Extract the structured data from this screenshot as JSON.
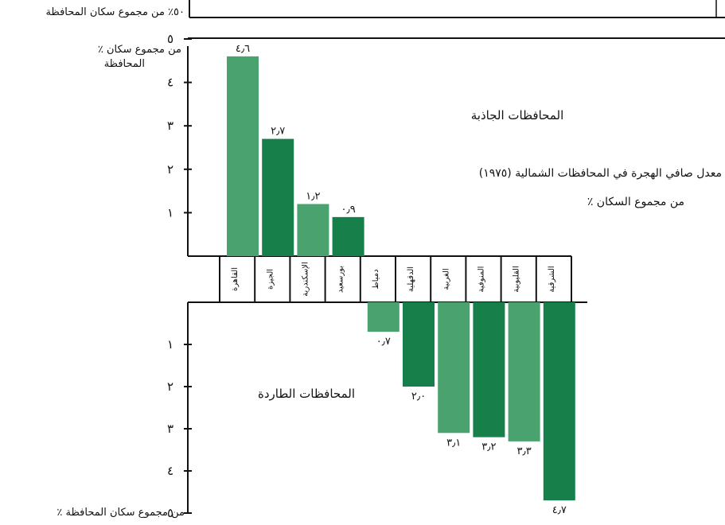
{
  "top_fragment_label": "٥٠٪ من مجموع سكان المحافظة",
  "chart_data": {
    "type": "bar",
    "title": "معدل صافي الهجرة في المحافظات الشمالية (١٩٧٥)",
    "subtitle": "٪ من مجموع السكان",
    "axis_top_label_line1": "٪ من مجموع سكان",
    "axis_top_label_line2": "المحافظة",
    "axis_bottom_label": "٪ من مجموع سكان المحافظة",
    "yticks_positive": [
      "٥",
      "٤",
      "٣",
      "٢",
      "١"
    ],
    "yticks_negative": [
      "١",
      "٢",
      "٣",
      "٤",
      "٥"
    ],
    "ylim": [
      -5,
      5
    ],
    "group_labels": {
      "attracting": "المحافظات الجاذبة",
      "repelling": "المحافظات الطاردة"
    },
    "categories": [
      "القاهرة",
      "الجيزة",
      "الإسكندرية",
      "بورسعيد",
      "دمياط",
      "الدقهلية",
      "الغربية",
      "المنوفية",
      "القليوبية",
      "الشرقية"
    ],
    "values": [
      4.6,
      2.7,
      1.2,
      0.9,
      -0.7,
      -2.0,
      -3.1,
      -3.2,
      -3.3,
      -4.7
    ],
    "value_labels": [
      "٤٫٦",
      "٢٫٧",
      "١٫٢",
      "٠٫٩",
      "٠٫٧",
      "٢٫٠",
      "٣٫١",
      "٣٫٢",
      "٣٫٣",
      "٤٫٧"
    ],
    "colors": {
      "light": "#4aa36e",
      "dark": "#17804a"
    },
    "bar_shades": [
      "light",
      "dark",
      "light",
      "dark",
      "light",
      "dark",
      "light",
      "dark",
      "light",
      "dark"
    ],
    "grid": false,
    "legend": "none"
  }
}
